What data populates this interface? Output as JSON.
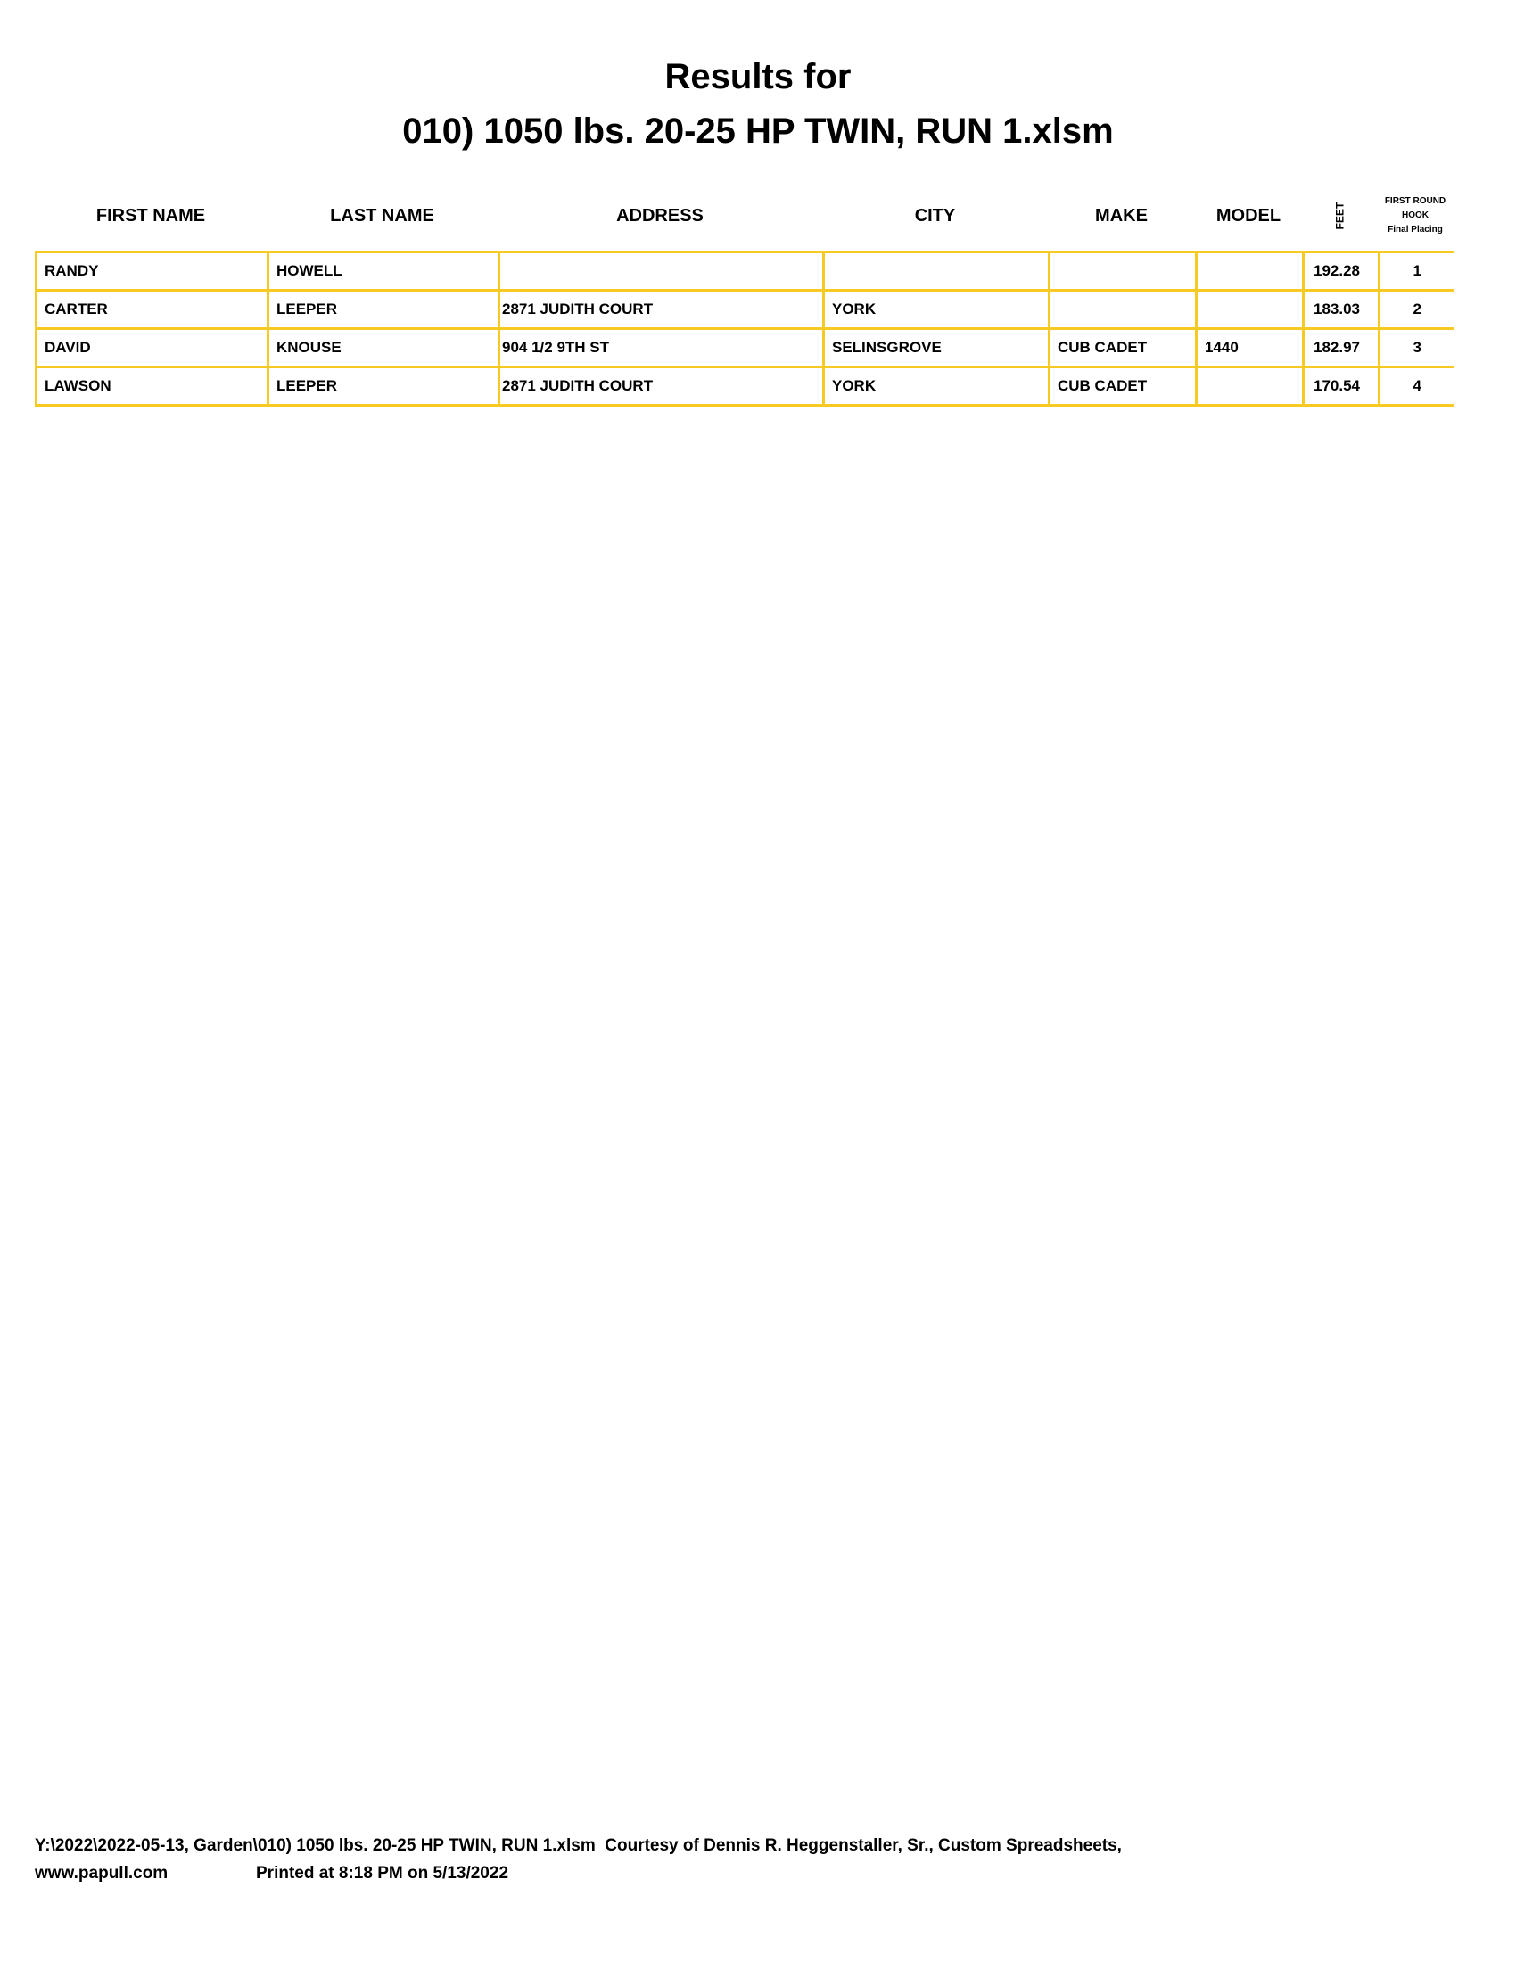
{
  "title_line1": "Results for",
  "title_line2": "010) 1050 lbs. 20-25 HP TWIN, RUN 1.xlsm",
  "columns": {
    "first_name": "FIRST NAME",
    "last_name": "LAST NAME",
    "address": "ADDRESS",
    "city": "CITY",
    "make": "MAKE",
    "model": "MODEL",
    "feet": "FEET",
    "placing_1": "FIRST ROUND",
    "placing_2": "HOOK",
    "placing_3": "Final Placing"
  },
  "rows": [
    {
      "first": "RANDY",
      "last": "HOWELL",
      "address": "",
      "city": "",
      "make": "",
      "model": "",
      "feet": "192.28",
      "place": "1"
    },
    {
      "first": "CARTER",
      "last": "LEEPER",
      "address": "2871 JUDITH COURT",
      "city": "YORK",
      "make": "",
      "model": "",
      "feet": "183.03",
      "place": "2"
    },
    {
      "first": "DAVID",
      "last": "KNOUSE",
      "address": "904 1/2 9TH ST",
      "city": "SELINSGROVE",
      "make": "CUB CADET",
      "model": "1440",
      "feet": "182.97",
      "place": "3"
    },
    {
      "first": "LAWSON",
      "last": "LEEPER",
      "address": "2871 JUDITH COURT",
      "city": "YORK",
      "make": "CUB CADET",
      "model": "",
      "feet": "170.54",
      "place": "4"
    }
  ],
  "footer_line1": "Y:\\2022\\2022-05-13, Garden\\010) 1050 lbs. 20-25 HP TWIN, RUN 1.xlsm  Courtesy of Dennis R. Heggenstaller, Sr., Custom Spreadsheets,",
  "footer_url": "www.papull.com",
  "footer_printed": "Printed at 8:18 PM on 5/13/2022",
  "colors": {
    "border": "#f7c923"
  }
}
